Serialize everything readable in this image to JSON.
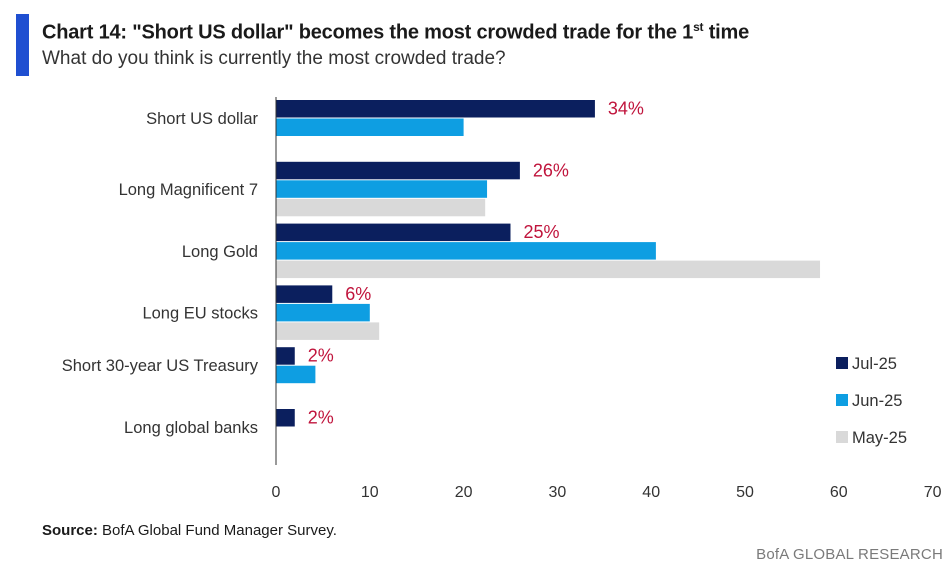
{
  "header": {
    "title_main": "Chart 14: \"Short US dollar\" becomes the most crowded trade for the 1",
    "title_sup": "st",
    "title_end": " time",
    "subtitle": "What do you think is currently the most crowded trade?"
  },
  "colors": {
    "accent": "#1f4fd1",
    "jul": "#0b1f5e",
    "jun": "#0e9ee2",
    "may": "#d9d9d9",
    "label": "#c0143c"
  },
  "chart_data": {
    "type": "bar",
    "orientation": "horizontal",
    "categories": [
      "Short US dollar",
      "Long Magnificent 7",
      "Long Gold",
      "Long EU stocks",
      "Short 30-year US Treasury",
      "Long global banks"
    ],
    "series": [
      {
        "name": "Jul-25",
        "values": [
          34,
          26,
          25,
          6,
          2,
          2
        ]
      },
      {
        "name": "Jun-25",
        "values": [
          20,
          22.5,
          40.5,
          10,
          4.2,
          null
        ]
      },
      {
        "name": "May-25",
        "values": [
          null,
          22.3,
          58,
          11,
          null,
          null
        ]
      }
    ],
    "data_labels": [
      "34%",
      "26%",
      "25%",
      "6%",
      "2%",
      "2%"
    ],
    "xlim": [
      0,
      70
    ],
    "xticks": [
      "0",
      "10",
      "20",
      "30",
      "40",
      "50",
      "60",
      "70"
    ],
    "legend": [
      "Jul-25",
      "Jun-25",
      "May-25"
    ],
    "legend_position": "bottom-right",
    "grid": false
  },
  "source": {
    "label": "Source:",
    "text": " BofA Global Fund Manager Survey."
  },
  "footer": "BofA GLOBAL RESEARCH"
}
